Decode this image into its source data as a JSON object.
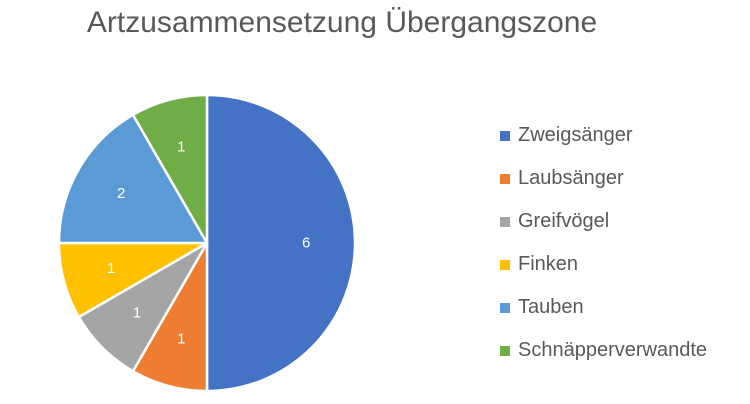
{
  "chart_data": {
    "type": "pie",
    "title": "Artzusammensetzung Übergangszone",
    "categories": [
      "Zweigsänger",
      "Laubsänger",
      "Greifvögel",
      "Finken",
      "Tauben",
      "Schnäpperverwandte"
    ],
    "values": [
      6,
      1,
      1,
      1,
      2,
      1
    ],
    "colors": [
      "#4472C4",
      "#ED7D31",
      "#A5A5A5",
      "#FFC000",
      "#5B9BD5",
      "#70AD47"
    ],
    "data_labels": [
      "6",
      "1",
      "1",
      "1",
      "2",
      "1"
    ],
    "legend_position": "right",
    "start_angle": "12 o'clock",
    "direction": "clockwise"
  }
}
